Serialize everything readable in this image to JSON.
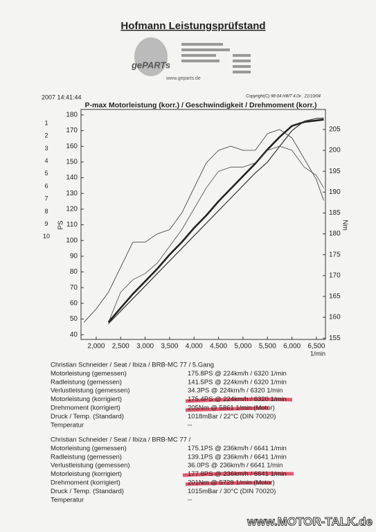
{
  "header": {
    "title": "Hofmann Leistungsprüfstand",
    "logo": "gePARTs",
    "url": "www.geparts.de"
  },
  "margin_numbers": [
    "1",
    "2",
    "3",
    "4",
    "5",
    "6",
    "7",
    "8",
    "9",
    "10"
  ],
  "timestamp": "2007 14:41:44",
  "copyright": "Copyright(C) 98-04 HWT 4.0v . 21/10/04",
  "chart_data": {
    "type": "line",
    "title": "P-max Motorleistung (korr.) / Geschwindigkeit / Drehmoment (korr.)",
    "x_label": "1/min",
    "y_label": "PS",
    "y2_label": "Nm",
    "x": [
      1750,
      2000,
      2250,
      2500,
      2750,
      3000,
      3250,
      3500,
      3750,
      4000,
      4250,
      4500,
      4750,
      5000,
      5250,
      5500,
      5750,
      6000,
      6250,
      6500,
      6650
    ],
    "xlim": [
      1690,
      6685
    ],
    "xticks": [
      {
        "value": 2000,
        "label": "2,000"
      },
      {
        "value": 2500,
        "label": "2,500"
      },
      {
        "value": 3000,
        "label": "3,000"
      },
      {
        "value": 3500,
        "label": "3,500"
      },
      {
        "value": 4000,
        "label": "4,000"
      },
      {
        "value": 4500,
        "label": "4,500"
      },
      {
        "value": 5000,
        "label": "5,000"
      },
      {
        "value": 5500,
        "label": "5,500"
      },
      {
        "value": 6000,
        "label": "6,000"
      },
      {
        "value": 6500,
        "label": "6,500"
      }
    ],
    "ylim": [
      37,
      183.5
    ],
    "yticks": [
      40,
      50,
      60,
      70,
      80,
      90,
      100,
      110,
      120,
      130,
      140,
      150,
      160,
      170,
      180
    ],
    "y2lim": [
      154.7,
      209.8
    ],
    "y2ticks": [
      155,
      160,
      165,
      170,
      175,
      180,
      185,
      190,
      195,
      200,
      205
    ],
    "series": [
      {
        "color": "#222222",
        "width": 2.6,
        "values": [
          null,
          null,
          48,
          57,
          66,
          74,
          82,
          91,
          99,
          108,
          116,
          125,
          133,
          141,
          149,
          158,
          166,
          173,
          175.5,
          176.5,
          177
        ]
      },
      {
        "color": "#333333",
        "width": 1.2,
        "values": [
          null,
          null,
          47,
          55,
          63,
          71,
          79,
          87,
          95,
          103,
          111,
          119,
          127,
          135,
          143,
          150,
          160,
          170,
          176,
          177.8,
          178
        ]
      },
      {
        "color": "#333333",
        "width": 0.8,
        "axis": "y2",
        "values": [
          158.8,
          162,
          166,
          172,
          178,
          178,
          180,
          181,
          185,
          191,
          197,
          200,
          201,
          200,
          200,
          204,
          205,
          203,
          198,
          193,
          188
        ]
      },
      {
        "color": "#444444",
        "width": 0.8,
        "axis": "y2",
        "values": [
          null,
          null,
          158.8,
          166,
          169,
          170.5,
          173,
          177,
          181,
          186,
          191,
          195,
          196,
          196,
          197,
          200,
          201,
          200,
          196,
          194,
          191
        ]
      }
    ]
  },
  "results": [
    {
      "heading": "Christian Schneider / Seat / Ibiza / BRB-MC 77 / 5.Gang",
      "rows": [
        [
          "Motorleistung (gemessen)",
          "175.8PS @ 224km/h / 6320 1/min"
        ],
        [
          "Radleistung (gemessen)",
          "141.5PS @ 224km/h / 6320 1/min"
        ],
        [
          "Verlustleistung (gemessen)",
          "34.3PS @ 224km/h / 6320 1/min"
        ],
        [
          "Motorleistung (korrigiert)",
          "175.4PS @ 224km/h / 6320 1/min"
        ],
        [
          "Drehmoment (korrigiert)",
          "205Nm @ 5861 1/min (Motor)"
        ],
        [
          "Druck / Temp. (Standard)",
          "1018mBar / 22°C (DIN 70020)"
        ],
        [
          "Temperatur",
          "--"
        ]
      ]
    },
    {
      "heading": "Christian Schneider / Seat / Ibiza / BRB-MC 77 /",
      "rows": [
        [
          "Motorleistung (gemessen)",
          "175.1PS @ 236km/h / 6641 1/min"
        ],
        [
          "Radleistung (gemessen)",
          "139.1PS @ 236km/h / 6641 1/min"
        ],
        [
          "Verlustleistung (gemessen)",
          "36.0PS @ 236km/h / 6641 1/min"
        ],
        [
          "Motorleistung (korrigiert)",
          "177.8PS @ 236km/h / 6641 1/min"
        ],
        [
          "Drehmoment (korrigiert)",
          "201Nm @ 5729 1/min (Motor)"
        ],
        [
          "Druck / Temp. (Standard)",
          "1015mBar / 30°C (DIN 70020)"
        ],
        [
          "Temperatur",
          "--"
        ]
      ]
    }
  ],
  "watermark": "www.MOTOR-TALK.de"
}
